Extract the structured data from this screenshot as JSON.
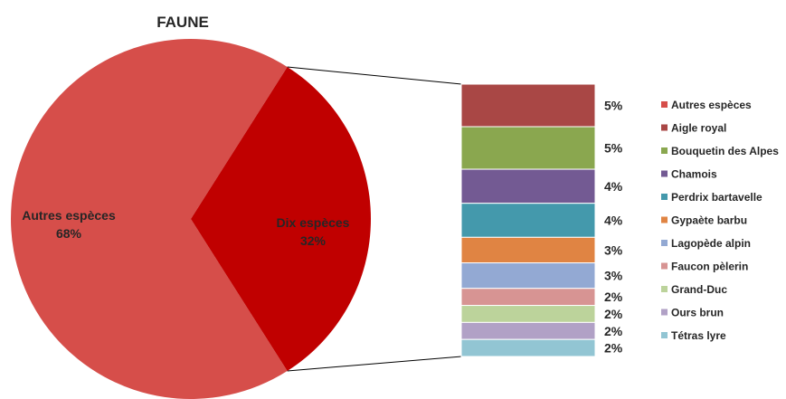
{
  "chart_data": {
    "type": "bar-of-pie",
    "title": "FAUNE",
    "pie": {
      "slices": [
        {
          "label": "Autres espèces",
          "value": 68,
          "value_label": "68%",
          "color": "#d64e4a"
        },
        {
          "label": "Dix espèces",
          "value": 32,
          "value_label": "32%",
          "color": "#c00000"
        }
      ]
    },
    "bar": {
      "segments": [
        {
          "label": "Aigle royal",
          "value": 5,
          "value_label": "5%",
          "color": "#a94745"
        },
        {
          "label": "Bouquetin des Alpes",
          "value": 5,
          "value_label": "5%",
          "color": "#8aa74f"
        },
        {
          "label": "Chamois",
          "value": 4,
          "value_label": "4%",
          "color": "#735a93"
        },
        {
          "label": "Perdrix bartavelle",
          "value": 4,
          "value_label": "4%",
          "color": "#4499ac"
        },
        {
          "label": "Gypaète barbu",
          "value": 3,
          "value_label": "3%",
          "color": "#e08443"
        },
        {
          "label": "Lagopède alpin",
          "value": 3,
          "value_label": "3%",
          "color": "#93a9d3"
        },
        {
          "label": "Faucon pèlerin",
          "value": 2,
          "value_label": "2%",
          "color": "#d79493"
        },
        {
          "label": "Grand-Duc",
          "value": 2,
          "value_label": "2%",
          "color": "#bcd39b"
        },
        {
          "label": "Ours brun",
          "value": 2,
          "value_label": "2%",
          "color": "#b1a1c6"
        },
        {
          "label": "Tétras lyre",
          "value": 2,
          "value_label": "2%",
          "color": "#92c5d3"
        }
      ]
    },
    "legend": {
      "position": "right",
      "entries": [
        {
          "label": "Autres espèces",
          "color": "#d64e4a"
        },
        {
          "label": "Aigle royal",
          "color": "#a94745"
        },
        {
          "label": "Bouquetin des Alpes",
          "color": "#8aa74f"
        },
        {
          "label": "Chamois",
          "color": "#735a93"
        },
        {
          "label": "Perdrix bartavelle",
          "color": "#4499ac"
        },
        {
          "label": "Gypaète barbu",
          "color": "#e08443"
        },
        {
          "label": "Lagopède alpin",
          "color": "#93a9d3"
        },
        {
          "label": "Faucon pèlerin",
          "color": "#d79493"
        },
        {
          "label": "Grand-Duc",
          "color": "#bcd39b"
        },
        {
          "label": "Ours brun",
          "color": "#b1a1c6"
        },
        {
          "label": "Tétras lyre",
          "color": "#92c5d3"
        }
      ]
    }
  }
}
